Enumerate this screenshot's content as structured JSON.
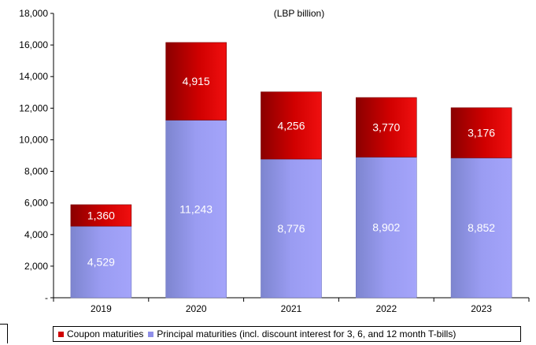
{
  "chart_data": {
    "type": "bar",
    "stacked": true,
    "title": "",
    "units_note": "(LBP billion)",
    "xlabel": "",
    "ylabel": "",
    "categories": [
      "2019",
      "2020",
      "2021",
      "2022",
      "2023"
    ],
    "ylim": [
      0,
      18000
    ],
    "yticks": [
      0,
      2000,
      4000,
      6000,
      8000,
      10000,
      12000,
      14000,
      16000,
      18000
    ],
    "ytick_labels": [
      "-",
      "2,000",
      "4,000",
      "6,000",
      "8,000",
      "10,000",
      "12,000",
      "14,000",
      "16,000",
      "18,000"
    ],
    "grid": false,
    "legend_position": "bottom",
    "series": [
      {
        "name": "Principal maturities (incl. discount interest for 3, 6, and 12 month T-bills)",
        "values": [
          4529,
          11243,
          8776,
          8902,
          8852
        ],
        "labels": [
          "4,529",
          "11,243",
          "8,776",
          "8,902",
          "8,852"
        ],
        "color": "#8f8fe8"
      },
      {
        "name": "Coupon maturities",
        "values": [
          1360,
          4915,
          4256,
          3770,
          3176
        ],
        "labels": [
          "1,360",
          "4,915",
          "4,256",
          "3,770",
          "3,176"
        ],
        "color": "#c40000"
      }
    ]
  },
  "legend": {
    "coupon_label": "Coupon maturities",
    "principal_label": "Principal maturities (incl. discount interest for 3, 6, and 12 month T-bills)"
  }
}
